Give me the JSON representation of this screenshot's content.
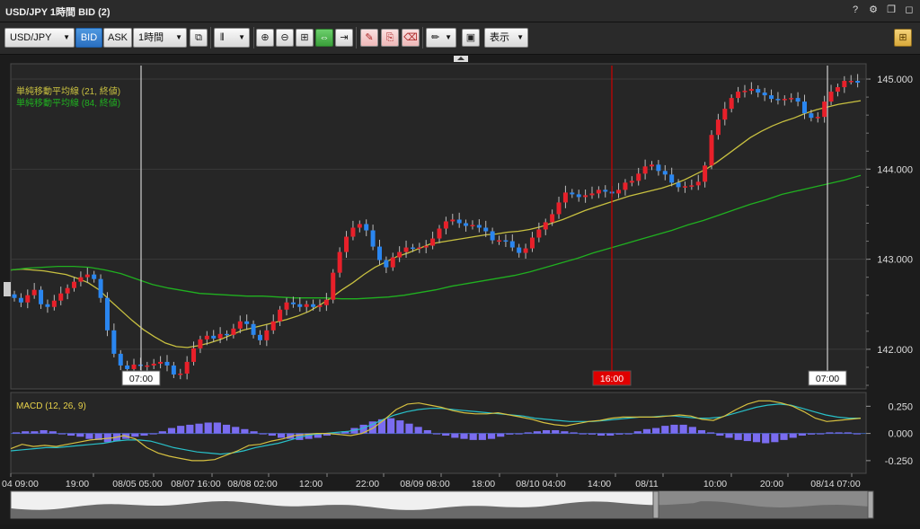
{
  "window": {
    "title": "USD/JPY 1時間 BID (2)",
    "icons": [
      "help-icon",
      "gear-icon",
      "restore-icon",
      "maximize-icon"
    ]
  },
  "toolbar": {
    "symbol": "USD/JPY",
    "bid_label": "BID",
    "ask_label": "ASK",
    "timeframe": "1時間",
    "view_label": "表示"
  },
  "chart_data": {
    "type": "candlestick",
    "title": "",
    "xlabel": "",
    "ylabel": "",
    "ylim": [
      141.58,
      145.15
    ],
    "y_ticks": [
      "145.000",
      "144.000",
      "143.000",
      "142.000"
    ],
    "x_ticks": [
      "04 09:00",
      "19:00",
      "08/05 05:00",
      "08/07 16:00",
      "08/08 02:00",
      "12:00",
      "22:00",
      "08/09 08:00",
      "18:00",
      "08/10 04:00",
      "14:00",
      "08/11",
      "10:00",
      "20:00",
      "08/14 07:00"
    ],
    "cursor_labels": [
      "07:00",
      "16:00",
      "07:00"
    ],
    "colors": {
      "up": "#e8202a",
      "down": "#2a86f0",
      "sma21": "#c8c040",
      "sma84": "#20b020",
      "macd": "#d6c040",
      "signal": "#28c0c8",
      "hist": "#7a6cf0",
      "cursor": "#d00000"
    },
    "legend": [
      "単純移動平均線 (21, 終値)",
      "単純移動平均線 (84, 終値)"
    ],
    "closes": [
      142.57,
      142.52,
      142.6,
      142.66,
      142.5,
      142.47,
      142.54,
      142.62,
      142.68,
      142.75,
      142.8,
      142.83,
      142.78,
      142.57,
      142.21,
      141.95,
      141.82,
      141.78,
      141.83,
      141.82,
      141.82,
      141.84,
      141.86,
      141.82,
      141.72,
      141.73,
      141.86,
      142.01,
      142.11,
      142.15,
      142.12,
      142.17,
      142.16,
      142.23,
      142.31,
      142.28,
      142.16,
      142.1,
      142.21,
      142.31,
      142.44,
      142.52,
      142.5,
      142.47,
      142.5,
      142.47,
      142.49,
      142.55,
      142.85,
      143.08,
      143.25,
      143.35,
      143.39,
      143.32,
      143.14,
      142.99,
      142.91,
      143.02,
      143.08,
      143.13,
      143.12,
      143.13,
      143.15,
      143.23,
      143.34,
      143.42,
      143.44,
      143.4,
      143.37,
      143.38,
      143.35,
      143.31,
      143.21,
      143.21,
      143.2,
      143.13,
      143.07,
      143.12,
      143.24,
      143.33,
      143.41,
      143.5,
      143.63,
      143.74,
      143.72,
      143.69,
      143.71,
      143.73,
      143.77,
      143.75,
      143.73,
      143.77,
      143.85,
      143.87,
      143.95,
      144.03,
      144.05,
      143.98,
      143.94,
      143.85,
      143.8,
      143.81,
      143.82,
      143.86,
      144.04,
      144.38,
      144.55,
      144.67,
      144.79,
      144.86,
      144.87,
      144.89,
      144.85,
      144.82,
      144.78,
      144.77,
      144.78,
      144.79,
      144.75,
      144.62,
      144.57,
      144.58,
      144.75,
      144.86,
      144.91,
      144.98,
      144.98,
      144.96
    ],
    "sma21": [
      142.88,
      142.89,
      142.88,
      142.87,
      142.85,
      142.83,
      142.79,
      142.74,
      142.66,
      142.54,
      142.43,
      142.32,
      142.22,
      142.14,
      142.07,
      142.03,
      142.02,
      142.04,
      142.07,
      142.11,
      142.16,
      142.21,
      142.24,
      142.27,
      142.3,
      142.33,
      142.37,
      142.42,
      142.49,
      142.57,
      142.66,
      142.74,
      142.83,
      142.91,
      142.97,
      143.03,
      143.07,
      143.12,
      143.17,
      143.19,
      143.21,
      143.23,
      143.25,
      143.27,
      143.28,
      143.3,
      143.31,
      143.33,
      143.36,
      143.4,
      143.44,
      143.49,
      143.54,
      143.58,
      143.62,
      143.66,
      143.7,
      143.73,
      143.76,
      143.79,
      143.83,
      143.88,
      143.94,
      144.0,
      144.08,
      144.17,
      144.26,
      144.35,
      144.42,
      144.48,
      144.53,
      144.57,
      144.62,
      144.66,
      144.69,
      144.72,
      144.74,
      144.76
    ],
    "sma84": [
      142.88,
      142.9,
      142.91,
      142.92,
      142.92,
      142.91,
      142.88,
      142.84,
      142.78,
      142.72,
      142.68,
      142.65,
      142.62,
      142.61,
      142.6,
      142.59,
      142.59,
      142.58,
      142.57,
      142.57,
      142.57,
      142.56,
      142.56,
      142.57,
      142.58,
      142.6,
      142.63,
      142.66,
      142.7,
      142.73,
      142.76,
      142.79,
      142.82,
      142.86,
      142.91,
      142.96,
      143.01,
      143.07,
      143.12,
      143.17,
      143.22,
      143.27,
      143.32,
      143.38,
      143.43,
      143.49,
      143.55,
      143.61,
      143.66,
      143.72,
      143.76,
      143.8,
      143.84,
      143.88,
      143.93
    ],
    "macd_panel": {
      "title": "MACD (12, 26, 9)",
      "params": [
        12,
        26,
        9
      ],
      "ylim": [
        -0.35,
        0.36
      ],
      "y_ticks": [
        "0.250",
        "0.000",
        "-0.250"
      ],
      "macd": [
        -0.14,
        -0.1,
        -0.12,
        -0.11,
        -0.12,
        -0.1,
        -0.08,
        -0.06,
        -0.05,
        -0.04,
        -0.02,
        -0.05,
        -0.13,
        -0.18,
        -0.21,
        -0.23,
        -0.25,
        -0.25,
        -0.24,
        -0.2,
        -0.16,
        -0.11,
        -0.1,
        -0.07,
        -0.05,
        -0.02,
        -0.01,
        0.0,
        0.0,
        -0.01,
        -0.02,
        0.0,
        0.05,
        0.13,
        0.22,
        0.27,
        0.28,
        0.26,
        0.24,
        0.21,
        0.19,
        0.18,
        0.18,
        0.19,
        0.17,
        0.15,
        0.13,
        0.1,
        0.08,
        0.07,
        0.09,
        0.11,
        0.12,
        0.14,
        0.15,
        0.15,
        0.15,
        0.15,
        0.16,
        0.17,
        0.16,
        0.13,
        0.12,
        0.16,
        0.22,
        0.27,
        0.3,
        0.3,
        0.28,
        0.25,
        0.2,
        0.14,
        0.11,
        0.12,
        0.13,
        0.14
      ],
      "signal": [
        -0.16,
        -0.15,
        -0.14,
        -0.13,
        -0.13,
        -0.12,
        -0.11,
        -0.1,
        -0.09,
        -0.07,
        -0.06,
        -0.06,
        -0.07,
        -0.1,
        -0.13,
        -0.15,
        -0.17,
        -0.18,
        -0.19,
        -0.18,
        -0.16,
        -0.13,
        -0.11,
        -0.09,
        -0.06,
        -0.03,
        -0.01,
        0.0,
        0.01,
        0.02,
        0.04,
        0.08,
        0.13,
        0.17,
        0.2,
        0.22,
        0.23,
        0.23,
        0.22,
        0.21,
        0.2,
        0.19,
        0.18,
        0.17,
        0.16,
        0.14,
        0.13,
        0.12,
        0.11,
        0.11,
        0.11,
        0.12,
        0.13,
        0.14,
        0.15,
        0.15,
        0.16,
        0.16,
        0.15,
        0.14,
        0.14,
        0.15,
        0.18,
        0.21,
        0.24,
        0.26,
        0.27,
        0.26,
        0.23,
        0.2,
        0.17,
        0.15,
        0.14,
        0.14
      ],
      "hist": [
        0.01,
        0.02,
        0.02,
        0.03,
        0.02,
        0.0,
        -0.02,
        -0.03,
        -0.05,
        -0.06,
        -0.08,
        -0.07,
        -0.05,
        -0.03,
        -0.02,
        0.0,
        0.02,
        0.05,
        0.07,
        0.08,
        0.09,
        0.1,
        0.1,
        0.08,
        0.06,
        0.04,
        0.02,
        0.0,
        -0.02,
        -0.04,
        -0.05,
        -0.06,
        -0.05,
        -0.04,
        -0.02,
        0.0,
        0.02,
        0.05,
        0.08,
        0.11,
        0.13,
        0.14,
        0.12,
        0.09,
        0.06,
        0.03,
        0.0,
        -0.02,
        -0.04,
        -0.05,
        -0.06,
        -0.06,
        -0.05,
        -0.03,
        -0.01,
        0.0,
        0.01,
        0.02,
        0.03,
        0.03,
        0.02,
        0.01,
        0.0,
        -0.01,
        -0.02,
        -0.02,
        -0.01,
        0.0,
        0.02,
        0.04,
        0.05,
        0.07,
        0.08,
        0.08,
        0.06,
        0.03,
        0.01,
        -0.02,
        -0.04,
        -0.06,
        -0.07,
        -0.08,
        -0.09,
        -0.08,
        -0.06,
        -0.04,
        -0.02,
        -0.01,
        0.0,
        0.01,
        0.01,
        0.01,
        0.0
      ]
    }
  }
}
